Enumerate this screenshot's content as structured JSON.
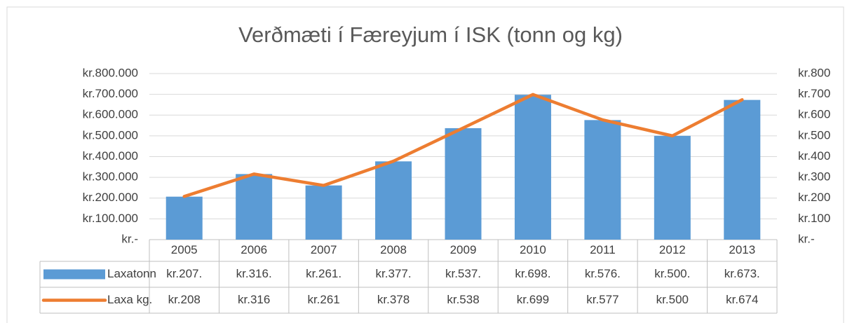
{
  "chart_data": {
    "type": "bar",
    "title": "Verðmæti í Færeyjum í ISK (tonn og kg)",
    "categories": [
      "2005",
      "2006",
      "2007",
      "2008",
      "2009",
      "2010",
      "2011",
      "2012",
      "2013"
    ],
    "series": [
      {
        "name": "Laxatonn",
        "type": "bar",
        "color": "#5b9bd5",
        "values": [
          207000,
          316000,
          261000,
          377000,
          537000,
          698000,
          576000,
          500000,
          673000
        ],
        "value_labels": [
          "kr.207.",
          "kr.316.",
          "kr.261.",
          "kr.377.",
          "kr.537.",
          "kr.698.",
          "kr.576.",
          "kr.500.",
          "kr.673."
        ]
      },
      {
        "name": "Laxa kg.",
        "type": "line",
        "axis": "y2",
        "color": "#ed7d31",
        "values": [
          208,
          316,
          261,
          378,
          538,
          699,
          577,
          500,
          674
        ],
        "value_labels": [
          "kr.208",
          "kr.316",
          "kr.261",
          "kr.378",
          "kr.538",
          "kr.699",
          "kr.577",
          "kr.500",
          "kr.674"
        ]
      }
    ],
    "ylim": [
      0,
      800000
    ],
    "yticks": [
      {
        "value": 0,
        "label": "kr.-"
      },
      {
        "value": 100000,
        "label": "kr.100.000"
      },
      {
        "value": 200000,
        "label": "kr.200.000"
      },
      {
        "value": 300000,
        "label": "kr.300.000"
      },
      {
        "value": 400000,
        "label": "kr.400.000"
      },
      {
        "value": 500000,
        "label": "kr.500.000"
      },
      {
        "value": 600000,
        "label": "kr.600.000"
      },
      {
        "value": 700000,
        "label": "kr.700.000"
      },
      {
        "value": 800000,
        "label": "kr.800.000"
      }
    ],
    "y2lim": [
      0,
      800
    ],
    "y2ticks": [
      {
        "value": 0,
        "label": "kr.-"
      },
      {
        "value": 100,
        "label": "kr.100"
      },
      {
        "value": 200,
        "label": "kr.200"
      },
      {
        "value": 300,
        "label": "kr.300"
      },
      {
        "value": 400,
        "label": "kr.400"
      },
      {
        "value": 500,
        "label": "kr.500"
      },
      {
        "value": 600,
        "label": "kr.600"
      },
      {
        "value": 700,
        "label": "kr.700"
      },
      {
        "value": 800,
        "label": "kr.800"
      }
    ],
    "grid": true
  }
}
